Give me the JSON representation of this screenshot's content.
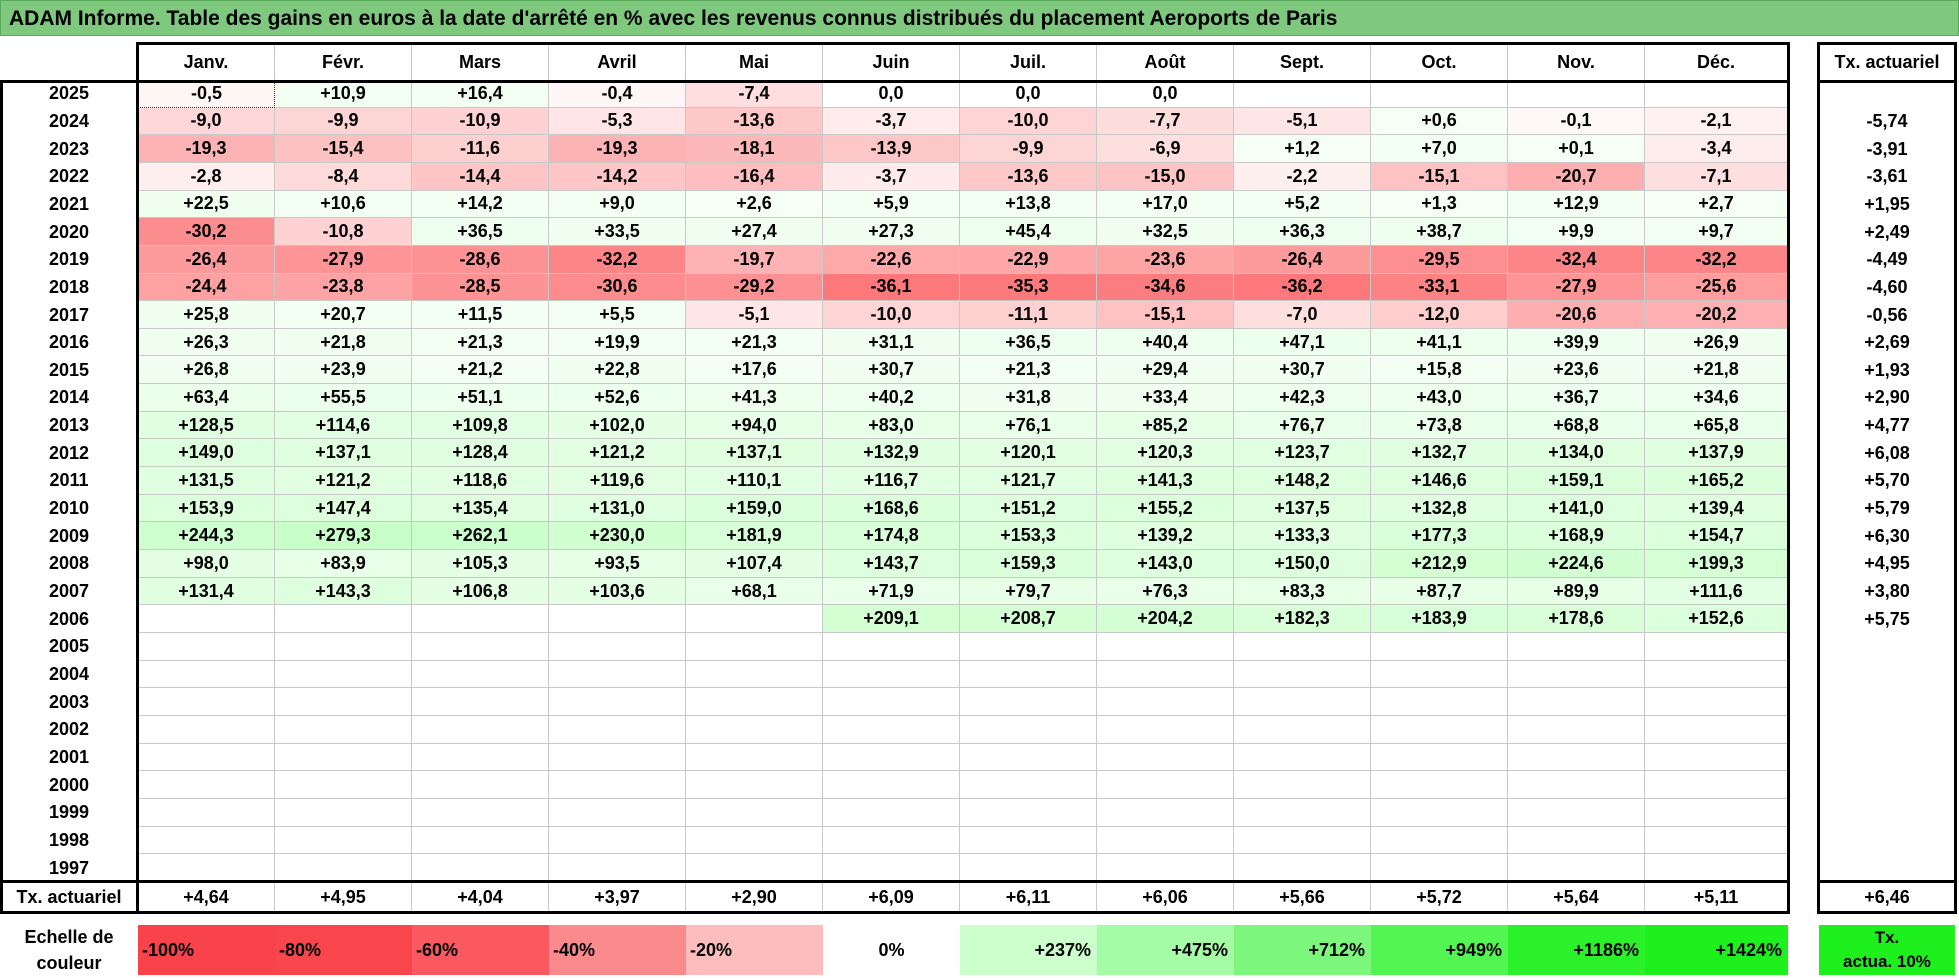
{
  "title": "ADAM Informe. Table des gains en euros à la date d'arrêté en % avec les revenus connus distribués du placement Aeroports de Paris",
  "months": [
    "Janv.",
    "Févr.",
    "Mars",
    "Avril",
    "Mai",
    "Juin",
    "Juil.",
    "Août",
    "Sept.",
    "Oct.",
    "Nov.",
    "Déc."
  ],
  "rate_header": "Tx. actuariel",
  "rows": [
    {
      "year": "2025",
      "values": [
        "-0,5",
        "+10,9",
        "+16,4",
        "-0,4",
        "-7,4",
        "0,0",
        "0,0",
        "0,0",
        "",
        "",
        "",
        ""
      ],
      "rate": ""
    },
    {
      "year": "2024",
      "values": [
        "-9,0",
        "-9,9",
        "-10,9",
        "-5,3",
        "-13,6",
        "-3,7",
        "-10,0",
        "-7,7",
        "-5,1",
        "+0,6",
        "-0,1",
        "-2,1"
      ],
      "rate": "-5,74"
    },
    {
      "year": "2023",
      "values": [
        "-19,3",
        "-15,4",
        "-11,6",
        "-19,3",
        "-18,1",
        "-13,9",
        "-9,9",
        "-6,9",
        "+1,2",
        "+7,0",
        "+0,1",
        "-3,4"
      ],
      "rate": "-3,91"
    },
    {
      "year": "2022",
      "values": [
        "-2,8",
        "-8,4",
        "-14,4",
        "-14,2",
        "-16,4",
        "-3,7",
        "-13,6",
        "-15,0",
        "-2,2",
        "-15,1",
        "-20,7",
        "-7,1"
      ],
      "rate": "-3,61"
    },
    {
      "year": "2021",
      "values": [
        "+22,5",
        "+10,6",
        "+14,2",
        "+9,0",
        "+2,6",
        "+5,9",
        "+13,8",
        "+17,0",
        "+5,2",
        "+1,3",
        "+12,9",
        "+2,7"
      ],
      "rate": "+1,95"
    },
    {
      "year": "2020",
      "values": [
        "-30,2",
        "-10,8",
        "+36,5",
        "+33,5",
        "+27,4",
        "+27,3",
        "+45,4",
        "+32,5",
        "+36,3",
        "+38,7",
        "+9,9",
        "+9,7"
      ],
      "rate": "+2,49"
    },
    {
      "year": "2019",
      "values": [
        "-26,4",
        "-27,9",
        "-28,6",
        "-32,2",
        "-19,7",
        "-22,6",
        "-22,9",
        "-23,6",
        "-26,4",
        "-29,5",
        "-32,4",
        "-32,2"
      ],
      "rate": "-4,49"
    },
    {
      "year": "2018",
      "values": [
        "-24,4",
        "-23,8",
        "-28,5",
        "-30,6",
        "-29,2",
        "-36,1",
        "-35,3",
        "-34,6",
        "-36,2",
        "-33,1",
        "-27,9",
        "-25,6"
      ],
      "rate": "-4,60"
    },
    {
      "year": "2017",
      "values": [
        "+25,8",
        "+20,7",
        "+11,5",
        "+5,5",
        "-5,1",
        "-10,0",
        "-11,1",
        "-15,1",
        "-7,0",
        "-12,0",
        "-20,6",
        "-20,2"
      ],
      "rate": "-0,56"
    },
    {
      "year": "2016",
      "values": [
        "+26,3",
        "+21,8",
        "+21,3",
        "+19,9",
        "+21,3",
        "+31,1",
        "+36,5",
        "+40,4",
        "+47,1",
        "+41,1",
        "+39,9",
        "+26,9"
      ],
      "rate": "+2,69"
    },
    {
      "year": "2015",
      "values": [
        "+26,8",
        "+23,9",
        "+21,2",
        "+22,8",
        "+17,6",
        "+30,7",
        "+21,3",
        "+29,4",
        "+30,7",
        "+15,8",
        "+23,6",
        "+21,8"
      ],
      "rate": "+1,93"
    },
    {
      "year": "2014",
      "values": [
        "+63,4",
        "+55,5",
        "+51,1",
        "+52,6",
        "+41,3",
        "+40,2",
        "+31,8",
        "+33,4",
        "+42,3",
        "+43,0",
        "+36,7",
        "+34,6"
      ],
      "rate": "+2,90"
    },
    {
      "year": "2013",
      "values": [
        "+128,5",
        "+114,6",
        "+109,8",
        "+102,0",
        "+94,0",
        "+83,0",
        "+76,1",
        "+85,2",
        "+76,7",
        "+73,8",
        "+68,8",
        "+65,8"
      ],
      "rate": "+4,77"
    },
    {
      "year": "2012",
      "values": [
        "+149,0",
        "+137,1",
        "+128,4",
        "+121,2",
        "+137,1",
        "+132,9",
        "+120,1",
        "+120,3",
        "+123,7",
        "+132,7",
        "+134,0",
        "+137,9"
      ],
      "rate": "+6,08"
    },
    {
      "year": "2011",
      "values": [
        "+131,5",
        "+121,2",
        "+118,6",
        "+119,6",
        "+110,1",
        "+116,7",
        "+121,7",
        "+141,3",
        "+148,2",
        "+146,6",
        "+159,1",
        "+165,2"
      ],
      "rate": "+5,70"
    },
    {
      "year": "2010",
      "values": [
        "+153,9",
        "+147,4",
        "+135,4",
        "+131,0",
        "+159,0",
        "+168,6",
        "+151,2",
        "+155,2",
        "+137,5",
        "+132,8",
        "+141,0",
        "+139,4"
      ],
      "rate": "+5,79"
    },
    {
      "year": "2009",
      "values": [
        "+244,3",
        "+279,3",
        "+262,1",
        "+230,0",
        "+181,9",
        "+174,8",
        "+153,3",
        "+139,2",
        "+133,3",
        "+177,3",
        "+168,9",
        "+154,7"
      ],
      "rate": "+6,30"
    },
    {
      "year": "2008",
      "values": [
        "+98,0",
        "+83,9",
        "+105,3",
        "+93,5",
        "+107,4",
        "+143,7",
        "+159,3",
        "+143,0",
        "+150,0",
        "+212,9",
        "+224,6",
        "+199,3"
      ],
      "rate": "+4,95"
    },
    {
      "year": "2007",
      "values": [
        "+131,4",
        "+143,3",
        "+106,8",
        "+103,6",
        "+68,1",
        "+71,9",
        "+79,7",
        "+76,3",
        "+83,3",
        "+87,7",
        "+89,9",
        "+111,6"
      ],
      "rate": "+3,80"
    },
    {
      "year": "2006",
      "values": [
        "",
        "",
        "",
        "",
        "",
        "+209,1",
        "+208,7",
        "+204,2",
        "+182,3",
        "+183,9",
        "+178,6",
        "+152,6"
      ],
      "rate": "+5,75"
    },
    {
      "year": "2005",
      "values": [
        "",
        "",
        "",
        "",
        "",
        "",
        "",
        "",
        "",
        "",
        "",
        ""
      ],
      "rate": ""
    },
    {
      "year": "2004",
      "values": [
        "",
        "",
        "",
        "",
        "",
        "",
        "",
        "",
        "",
        "",
        "",
        ""
      ],
      "rate": ""
    },
    {
      "year": "2003",
      "values": [
        "",
        "",
        "",
        "",
        "",
        "",
        "",
        "",
        "",
        "",
        "",
        ""
      ],
      "rate": ""
    },
    {
      "year": "2002",
      "values": [
        "",
        "",
        "",
        "",
        "",
        "",
        "",
        "",
        "",
        "",
        "",
        ""
      ],
      "rate": ""
    },
    {
      "year": "2001",
      "values": [
        "",
        "",
        "",
        "",
        "",
        "",
        "",
        "",
        "",
        "",
        "",
        ""
      ],
      "rate": ""
    },
    {
      "year": "2000",
      "values": [
        "",
        "",
        "",
        "",
        "",
        "",
        "",
        "",
        "",
        "",
        "",
        ""
      ],
      "rate": ""
    },
    {
      "year": "1999",
      "values": [
        "",
        "",
        "",
        "",
        "",
        "",
        "",
        "",
        "",
        "",
        "",
        ""
      ],
      "rate": ""
    },
    {
      "year": "1998",
      "values": [
        "",
        "",
        "",
        "",
        "",
        "",
        "",
        "",
        "",
        "",
        "",
        ""
      ],
      "rate": ""
    },
    {
      "year": "1997",
      "values": [
        "",
        "",
        "",
        "",
        "",
        "",
        "",
        "",
        "",
        "",
        "",
        ""
      ],
      "rate": ""
    }
  ],
  "footer": {
    "label": "Tx. actuariel",
    "values": [
      "+4,64",
      "+4,95",
      "+4,04",
      "+3,97",
      "+2,90",
      "+6,09",
      "+6,11",
      "+6,06",
      "+5,66",
      "+5,72",
      "+5,64",
      "+5,11"
    ],
    "rate": "+6,46"
  },
  "scale": {
    "label_line1": "Echelle de",
    "label_line2": "couleur",
    "items": [
      {
        "label": "-100%",
        "color": "#f9434a",
        "align": "l"
      },
      {
        "label": "-80%",
        "color": "#f9464d",
        "align": "l"
      },
      {
        "label": "-60%",
        "color": "#fa5a5f",
        "align": "l"
      },
      {
        "label": "-40%",
        "color": "#fb8a8d",
        "align": "l"
      },
      {
        "label": "-20%",
        "color": "#fdbdbe",
        "align": "l"
      },
      {
        "label": "0%",
        "color": "#ffffff",
        "align": "c"
      },
      {
        "label": "+237%",
        "color": "#ccffcc",
        "align": "r"
      },
      {
        "label": "+475%",
        "color": "#a6fca6",
        "align": "r"
      },
      {
        "label": "+712%",
        "color": "#7cf77c",
        "align": "r"
      },
      {
        "label": "+949%",
        "color": "#52f552",
        "align": "r"
      },
      {
        "label": "+1186%",
        "color": "#2bf12b",
        "align": "r"
      },
      {
        "label": "+1424%",
        "color": "#1ef01e",
        "align": "r"
      }
    ],
    "rate_line1": "Tx.",
    "rate_line2": "actua. 10%",
    "rate_color": "#1ef01e"
  }
}
